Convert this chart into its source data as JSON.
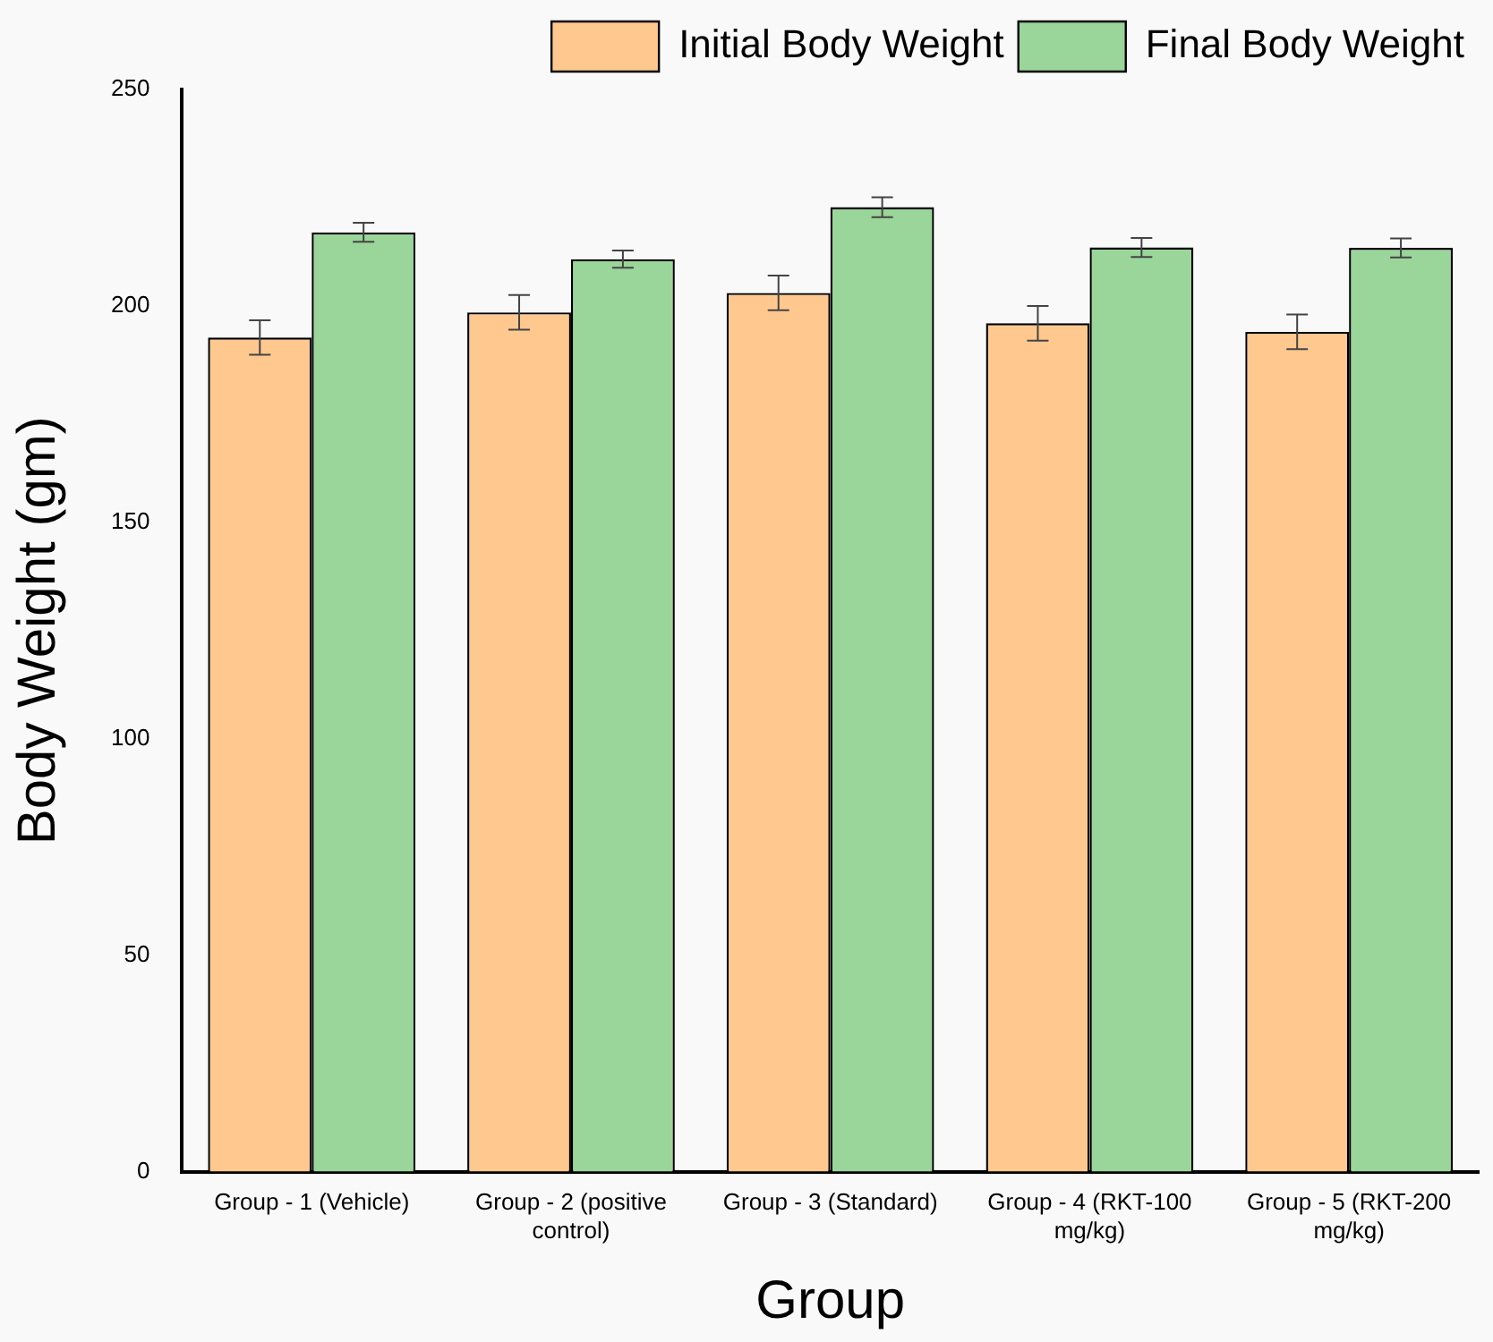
{
  "chart_data": {
    "type": "bar",
    "xlabel": "Group",
    "ylabel": "Body Weight (gm)",
    "categories": [
      "Group - 1 (Vehicle)",
      "Group - 2 (positive control)",
      "Group - 3 (Standard)",
      "Group - 4 (RKT-100 mg/kg)",
      "Group - 5 (RKT-200 mg/kg)"
    ],
    "series": [
      {
        "name": "Initial Body Weight",
        "color": "#ffc88f",
        "values": [
          192.7,
          198.5,
          203.0,
          196.0,
          194.0
        ],
        "errors": [
          4,
          4,
          4,
          4,
          4
        ]
      },
      {
        "name": "Final Body Weight",
        "color": "#9ad59a",
        "values": [
          217.0,
          210.8,
          222.8,
          213.5,
          213.4
        ],
        "errors": [
          2.2,
          2,
          2.3,
          2.2,
          2.2
        ]
      }
    ],
    "ylim": [
      0,
      250
    ],
    "yticks": [
      0,
      50,
      100,
      150,
      200,
      250
    ],
    "grid": false,
    "legend": "top right"
  }
}
